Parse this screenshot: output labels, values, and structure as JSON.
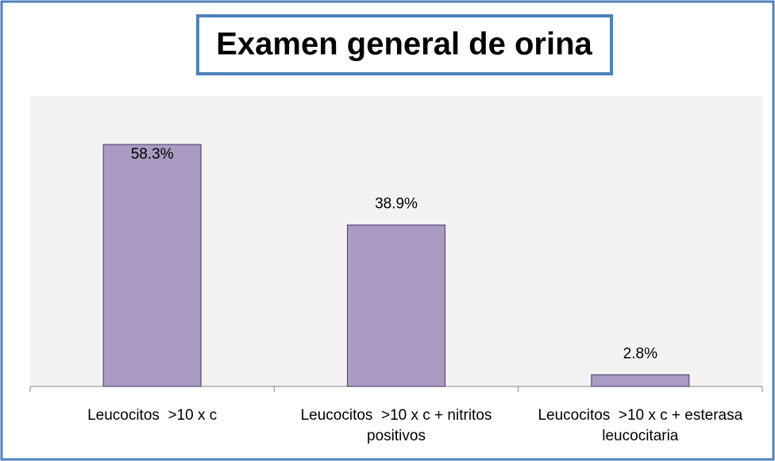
{
  "chart_data": {
    "type": "bar",
    "title": "Examen general de orina",
    "categories": [
      "Leucocitos  >10 x c",
      "Leucocitos  >10 x c + nitritos positivos",
      "Leucocitos  >10 x c + esterasa leucocitaria"
    ],
    "values": [
      58.3,
      38.9,
      2.8
    ],
    "value_labels": [
      "58.3%",
      "38.9%",
      "2.8%"
    ],
    "color": "#a99bc2",
    "ylim": [
      0,
      70
    ]
  }
}
